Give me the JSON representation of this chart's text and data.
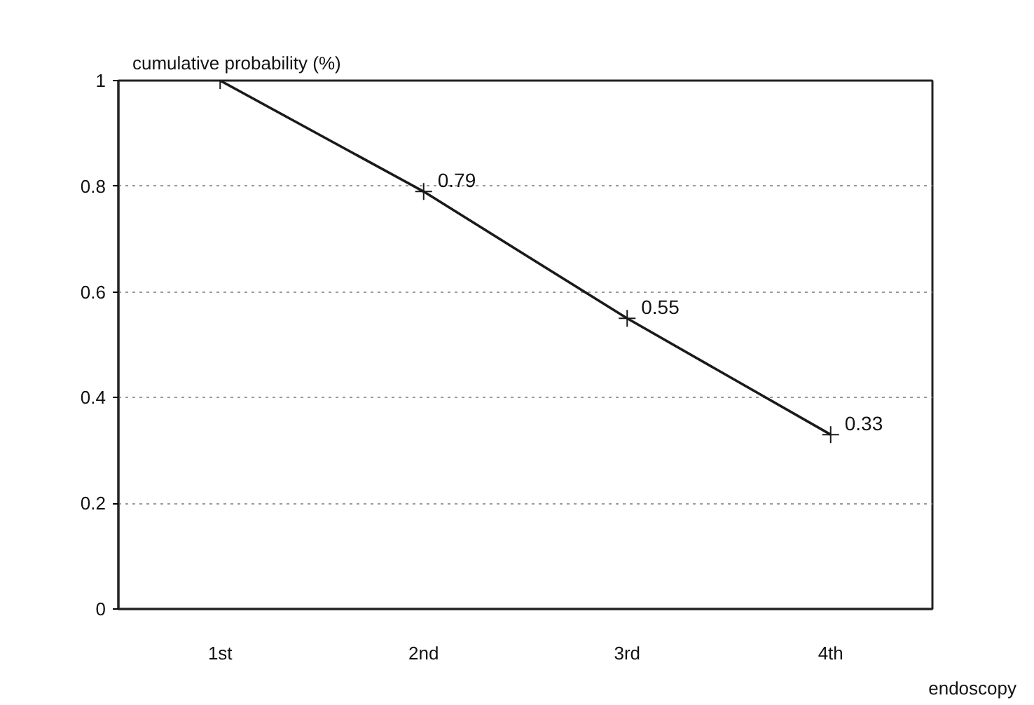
{
  "chart_data": {
    "type": "line",
    "xlabel": "endoscopy",
    "ylabel": "cumulative probability (%)",
    "categories": [
      "1st",
      "2nd",
      "3rd",
      "4th"
    ],
    "values": [
      1,
      0.79,
      0.55,
      0.33
    ],
    "value_labels": [
      null,
      "0.79",
      "0.55",
      "0.33"
    ],
    "color": "#1a1a1a",
    "marker": "cross",
    "line_style": "solid",
    "ylim": [
      0,
      1
    ],
    "yticks": [
      0,
      0.2,
      0.4,
      0.6,
      0.8,
      1
    ],
    "grid": "y"
  }
}
